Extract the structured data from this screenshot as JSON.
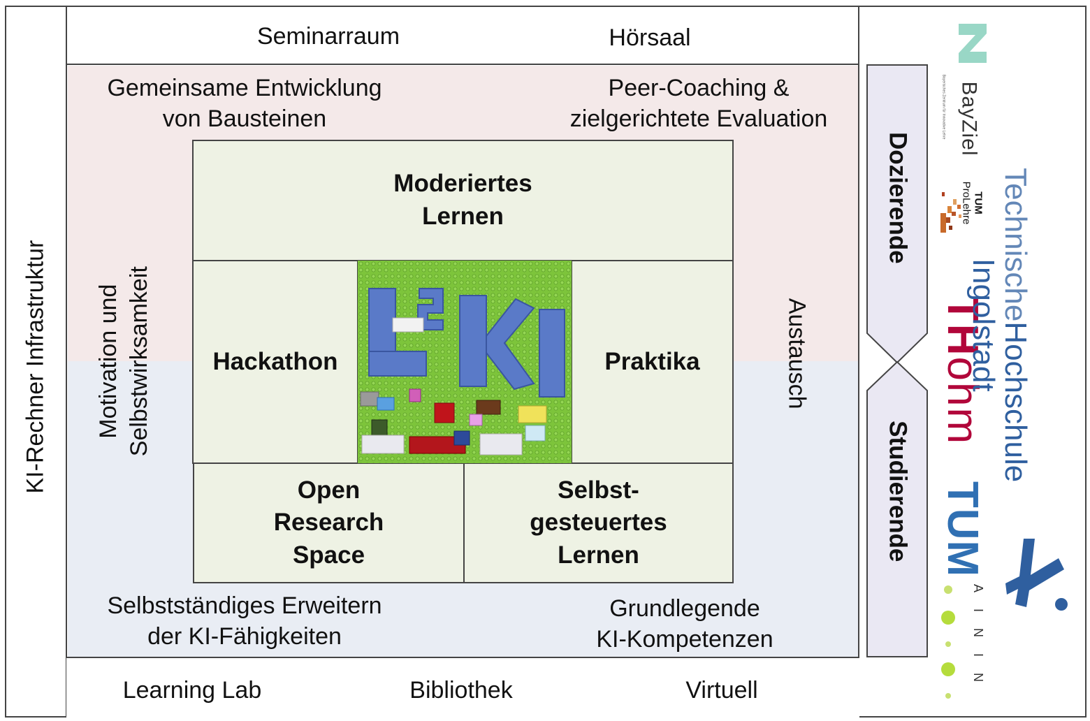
{
  "left_bar": {
    "label": "KI-Rechner Infrastruktur"
  },
  "top_rooms": [
    "Seminarraum",
    "Hörsaal"
  ],
  "bottom_rooms": [
    "Learning Lab",
    "Bibliothek",
    "Virtuell"
  ],
  "goals": {
    "top_left": [
      "Gemeinsame Entwicklung",
      "von Bausteinen"
    ],
    "top_right": [
      "Peer-Coaching &",
      "zielgerichtete Evaluation"
    ],
    "bottom_left": [
      "Selbstständiges Erweitern",
      "der KI-Fähigkeiten"
    ],
    "bottom_right": [
      "Grundlegende",
      "KI-Kompetenzen"
    ],
    "left_vertical": [
      "Motivation und",
      "Selbstwirksamkeit"
    ],
    "right_vertical": "Austausch"
  },
  "formats": {
    "moderated": [
      "Moderiertes",
      "Lernen"
    ],
    "hackathon": "Hackathon",
    "practica": "Praktika",
    "open_research": [
      "Open",
      "Research",
      "Space"
    ],
    "self_directed": [
      "Selbst-",
      "gesteuertes",
      "Lernen"
    ]
  },
  "center_logo": {
    "icon": "lego-l2ki-logo",
    "text": "L²KI"
  },
  "roles": {
    "lecturers": "Dozierende",
    "students": "Studierende"
  },
  "partners": {
    "bayziel": {
      "name": "BayZiel",
      "subtitle": "Bayerisches Zentrum für Innovative Lehre"
    },
    "tum_prolehre": [
      "TUM",
      "ProLehre"
    ],
    "th_ohm": [
      "TH",
      "ohm"
    ],
    "tum": "TUM",
    "aininn": "AININ",
    "thi": [
      "Technische",
      "Hochschule",
      "Ingolstadt"
    ]
  },
  "colors": {
    "upper_band": "#f4e9e9",
    "lower_band": "#e9edf4",
    "format_box": "#eef2e4",
    "role_box": "#eae8f3",
    "tum_blue": "#3070b3",
    "thi_blue": "#2f5f9f",
    "ohm_red": "#b1063a",
    "lego_green": "#7dc43b"
  }
}
